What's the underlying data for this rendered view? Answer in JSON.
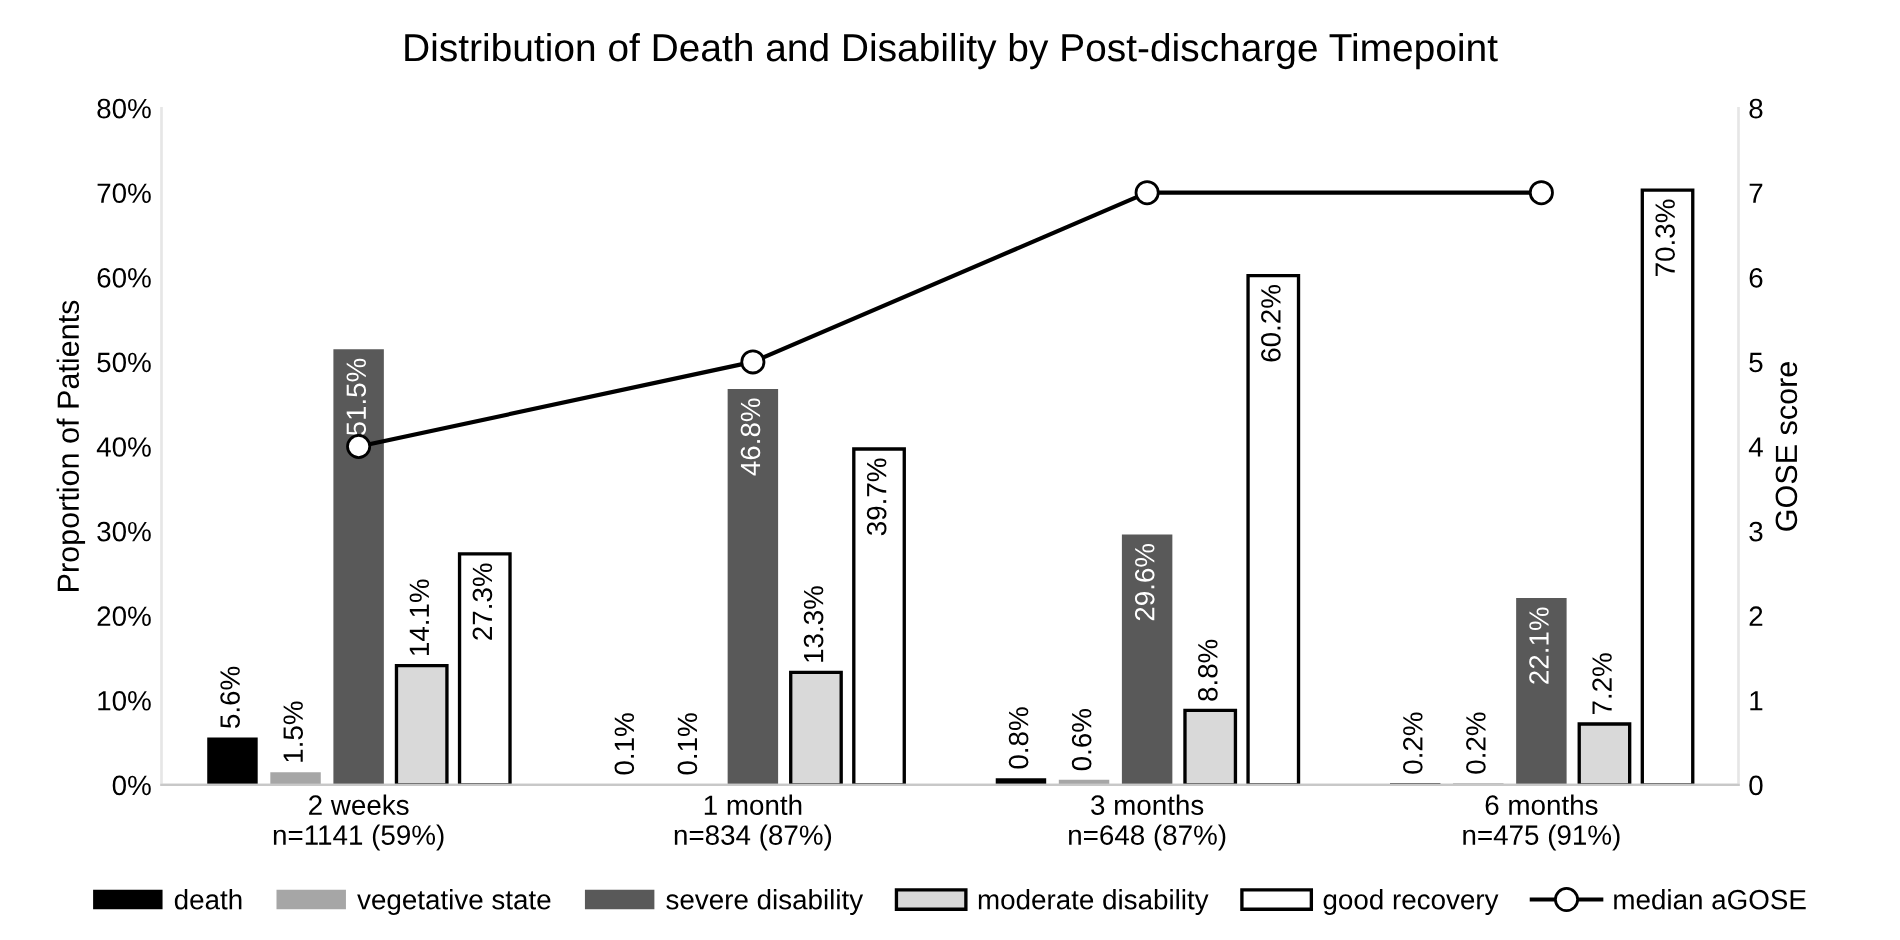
{
  "chart_data": {
    "type": "bar",
    "title": "Distribution of Death and Disability by Post-discharge Timepoint",
    "ylabel": "Proportion of Patients",
    "y2label": "GOSE score",
    "categories": [
      "2 weeks\nn=1141 (59%)",
      "1 month\nn=834 (87%)",
      "3 months\nn=648 (87%)",
      "6 months\nn=475 (91%)"
    ],
    "series": [
      {
        "name": "death",
        "color": "#000000",
        "values": [
          5.6,
          0.1,
          0.8,
          0.2
        ],
        "value_labels": [
          "5.6%",
          "0.1%",
          "0.8%",
          "0.2%"
        ]
      },
      {
        "name": "vegetative state",
        "color": "#a6a6a6",
        "values": [
          1.5,
          0.1,
          0.6,
          0.2
        ],
        "value_labels": [
          "1.5%",
          "0.1%",
          "0.6%",
          "0.2%"
        ]
      },
      {
        "name": "severe disability",
        "color": "#595959",
        "values": [
          51.5,
          46.8,
          29.6,
          22.1
        ],
        "value_labels": [
          "51.5%",
          "46.8%",
          "29.6%",
          "22.1%"
        ]
      },
      {
        "name": "moderate disability",
        "color": "#d9d9d9",
        "values": [
          14.1,
          13.3,
          8.8,
          7.2
        ],
        "value_labels": [
          "14.1%",
          "13.3%",
          "8.8%",
          "7.2%"
        ]
      },
      {
        "name": "good recovery",
        "color": "#ffffff",
        "values": [
          27.3,
          39.7,
          60.2,
          70.3
        ],
        "value_labels": [
          "27.3%",
          "39.7%",
          "60.2%",
          "70.3%"
        ]
      },
      {
        "name": "median aGOSE",
        "type": "line",
        "axis": "y2",
        "color": "#000000",
        "marker": "circle",
        "values": [
          4,
          5,
          7,
          7
        ]
      }
    ],
    "ylim": [
      0,
      80
    ],
    "yticks": [
      {
        "value": 0,
        "label": "0%"
      },
      {
        "value": 10,
        "label": "10%"
      },
      {
        "value": 20,
        "label": "20%"
      },
      {
        "value": 30,
        "label": "30%"
      },
      {
        "value": 40,
        "label": "40%"
      },
      {
        "value": 50,
        "label": "50%"
      },
      {
        "value": 60,
        "label": "60%"
      },
      {
        "value": 70,
        "label": "70%"
      },
      {
        "value": 80,
        "label": "80%"
      }
    ],
    "y2lim": [
      0,
      8
    ],
    "y2ticks": [
      0,
      1,
      2,
      3,
      4,
      5,
      6,
      7,
      8
    ],
    "grid": false,
    "legend": "bottom"
  }
}
